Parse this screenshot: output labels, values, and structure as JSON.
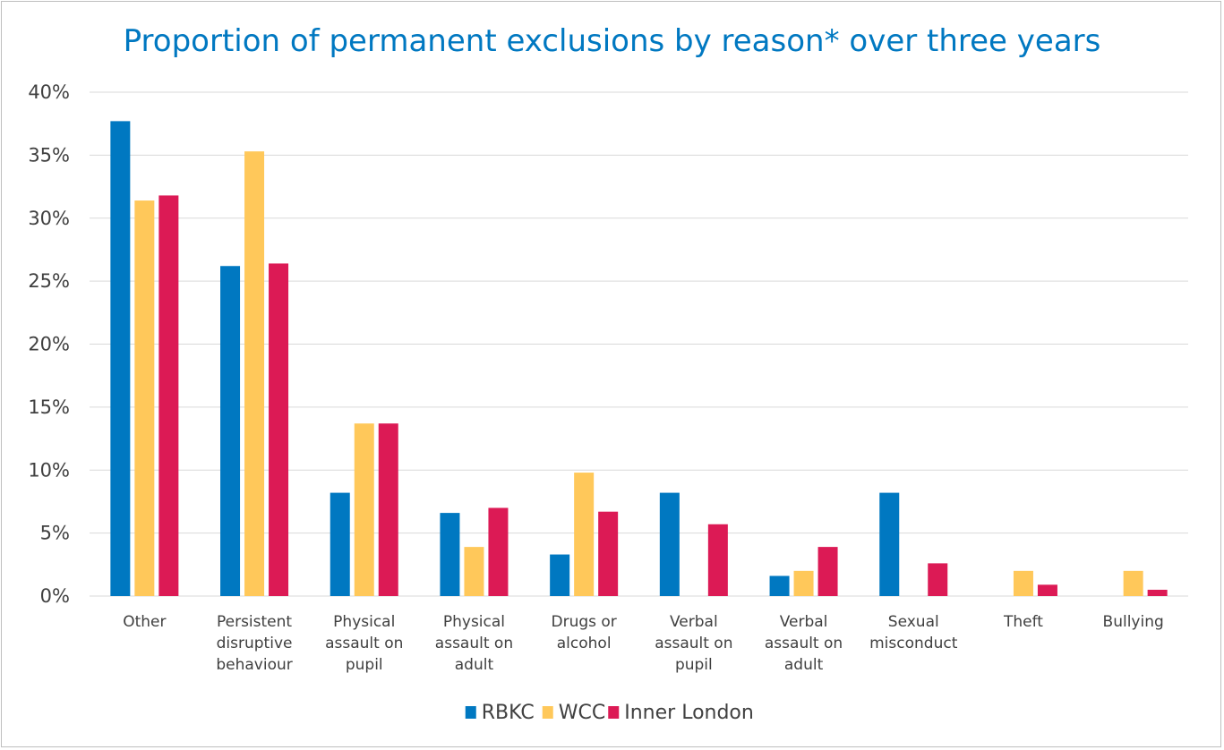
{
  "chart_data": {
    "type": "bar",
    "title": "Proportion of permanent exclusions by reason* over three years",
    "categories": [
      [
        "Other"
      ],
      [
        "Persistent",
        "disruptive",
        "behaviour"
      ],
      [
        "Physical",
        "assault on",
        "pupil"
      ],
      [
        "Physical",
        "assault on",
        "adult"
      ],
      [
        "Drugs or",
        "alcohol"
      ],
      [
        "Verbal",
        "assault on",
        "pupil"
      ],
      [
        "Verbal",
        "assault on",
        "adult"
      ],
      [
        "Sexual",
        "misconduct"
      ],
      [
        "Theft"
      ],
      [
        "Bullying"
      ]
    ],
    "series": [
      {
        "name": "RBKC",
        "color": "#0078c1",
        "values": [
          37.7,
          26.2,
          8.2,
          6.6,
          3.3,
          8.2,
          1.6,
          8.2,
          0,
          0
        ]
      },
      {
        "name": "WCC",
        "color": "#ffc85a",
        "values": [
          31.4,
          35.3,
          13.7,
          3.9,
          9.8,
          0,
          2.0,
          0,
          2.0,
          2.0
        ]
      },
      {
        "name": "Inner London",
        "color": "#dc1a55",
        "values": [
          31.8,
          26.4,
          13.7,
          7.0,
          6.7,
          5.7,
          3.9,
          2.6,
          0.9,
          0.5
        ]
      }
    ],
    "ylim": [
      0,
      40
    ],
    "yticks": [
      "0%",
      "5%",
      "10%",
      "15%",
      "20%",
      "25%",
      "30%",
      "35%",
      "40%"
    ],
    "grid": true,
    "legend_position": "bottom"
  }
}
